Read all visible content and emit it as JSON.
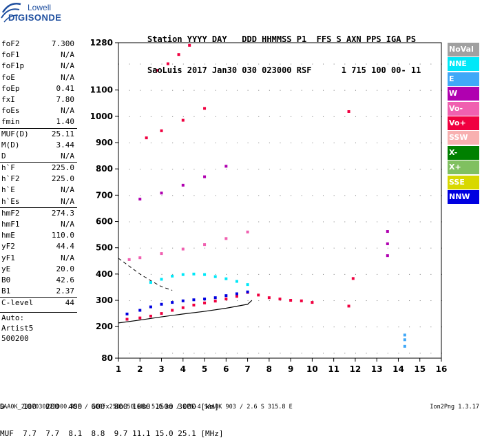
{
  "logo": {
    "line1": "Lowell",
    "line2": "DIGISONDE"
  },
  "header": {
    "line1": "Station YYYY DAY   DDD HHMMSS P1  FFS S AXN PPS IGA PS",
    "line2": "SaoLuis 2017 Jan30 030 023000 RSF      1 715 100 00- 11"
  },
  "params": [
    {
      "name": "foF2",
      "value": "7.300"
    },
    {
      "name": "foF1",
      "value": "N/A"
    },
    {
      "name": "foF1p",
      "value": "N/A"
    },
    {
      "name": "foE",
      "value": "N/A"
    },
    {
      "name": "foEp",
      "value": "0.41"
    },
    {
      "name": "fxI",
      "value": "7.80"
    },
    {
      "name": "foEs",
      "value": "N/A"
    },
    {
      "name": "fmin",
      "value": "1.40"
    },
    {
      "name": "MUF(D)",
      "value": "25.11",
      "sep": true
    },
    {
      "name": "M(D)",
      "value": "3.44"
    },
    {
      "name": "D",
      "value": "N/A"
    },
    {
      "name": "h`F",
      "value": "225.0",
      "sep": true
    },
    {
      "name": "h`F2",
      "value": "225.0"
    },
    {
      "name": "h`E",
      "value": "N/A"
    },
    {
      "name": "h`Es",
      "value": "N/A"
    },
    {
      "name": "hmF2",
      "value": "274.3",
      "sep": true
    },
    {
      "name": "hmF1",
      "value": "N/A"
    },
    {
      "name": "hmE",
      "value": "110.0"
    },
    {
      "name": "yF2",
      "value": "44.4"
    },
    {
      "name": "yF1",
      "value": "N/A"
    },
    {
      "name": "yE",
      "value": "20.0"
    },
    {
      "name": "B0",
      "value": "42.6"
    },
    {
      "name": "B1",
      "value": "2.37"
    },
    {
      "name": "C-level",
      "value": "44",
      "sep": true
    }
  ],
  "autoscale": {
    "line1": "Auto:",
    "line2": "Artist5",
    "line3": "500200"
  },
  "legend": [
    {
      "label": "NoVal",
      "bg": "#a0a0a0",
      "fg": "#ffffff"
    },
    {
      "label": "NNE",
      "bg": "#00e8f8",
      "fg": "#ffffff"
    },
    {
      "label": "E",
      "bg": "#40a8f8",
      "fg": "#ffffff"
    },
    {
      "label": "W",
      "bg": "#b000b0",
      "fg": "#ffffff"
    },
    {
      "label": "Vo-",
      "bg": "#f060b0",
      "fg": "#ffffff"
    },
    {
      "label": "Vo+",
      "bg": "#f00040",
      "fg": "#ffffff"
    },
    {
      "label": "SSW",
      "bg": "#f8b0b0",
      "fg": "#ffffff"
    },
    {
      "label": "X-",
      "bg": "#008000",
      "fg": "#ffffff"
    },
    {
      "label": "X+",
      "bg": "#80c060",
      "fg": "#ffffff"
    },
    {
      "label": "SSE",
      "bg": "#d8d800",
      "fg": "#ffffff"
    },
    {
      "label": "NNW",
      "bg": "#0000e0",
      "fg": "#ffffff"
    }
  ],
  "muf_table": {
    "d_row": "D    100  200  400  600  800 1000 1500 3000 [km]",
    "muf_row": "MUF  7.7  7.7  8.1  8.8  9.7 11.1 15.0 25.1 [MHz]"
  },
  "footer": "SAA0K_2017030023000.RSF / 300fx256h 50 kHz 5.0 km / DPS-4 SAA0K 903 / 2.6 S 315.8 E",
  "version": "Ion2Png 1.3.17",
  "chart_data": {
    "type": "scatter",
    "x_ticks": [
      1,
      2,
      3,
      4,
      5,
      6,
      7,
      8,
      9,
      10,
      11,
      12,
      13,
      14,
      15,
      16
    ],
    "y_ticks": [
      80,
      200,
      300,
      400,
      500,
      600,
      700,
      800,
      900,
      1000,
      1100,
      1280
    ],
    "xlim": [
      1,
      16
    ],
    "ylim": [
      80,
      1280
    ],
    "grid": true,
    "series": [
      {
        "color": "#f00040",
        "x": [
          1.4,
          2.0,
          2.5,
          3.0,
          3.5,
          4.0,
          4.5,
          5.0,
          5.5,
          6.0,
          6.5,
          7.0,
          7.5,
          8.0,
          8.5,
          9.0,
          9.5,
          10.0
        ],
        "y": [
          228,
          233,
          240,
          250,
          262,
          272,
          282,
          290,
          297,
          305,
          315,
          330,
          320,
          310,
          305,
          300,
          298,
          292
        ]
      },
      {
        "color": "#0000e0",
        "x": [
          1.4,
          2.0,
          2.5,
          3.0,
          3.5,
          4.0,
          4.5,
          5.0,
          5.5,
          6.0,
          6.5,
          7.0
        ],
        "y": [
          248,
          262,
          275,
          285,
          292,
          298,
          302,
          305,
          310,
          318,
          325,
          332
        ]
      },
      {
        "color": "#f060b0",
        "x": [
          1.5,
          2.0,
          3.0,
          4.0,
          5.0,
          6.0,
          7.0
        ],
        "y": [
          455,
          462,
          478,
          495,
          512,
          535,
          560
        ]
      },
      {
        "color": "#b000b0",
        "x": [
          2.0,
          3.0,
          4.0,
          5.0,
          6.0
        ],
        "y": [
          685,
          708,
          738,
          770,
          810
        ]
      },
      {
        "color": "#f00040",
        "x": [
          2.3,
          3.0,
          4.0,
          5.0
        ],
        "y": [
          918,
          945,
          985,
          1030
        ]
      },
      {
        "color": "#f00040",
        "x": [
          2.8,
          3.3,
          3.8,
          4.3
        ],
        "y": [
          1175,
          1200,
          1235,
          1270
        ]
      },
      {
        "color": "#00e8f8",
        "x": [
          2.5,
          3.0,
          3.5,
          4.0,
          4.5,
          5.0,
          5.5,
          6.0,
          6.5,
          7.0
        ],
        "y": [
          368,
          380,
          392,
          398,
          400,
          398,
          390,
          382,
          372,
          360
        ]
      },
      {
        "color": "#f00040",
        "x": [
          11.7,
          11.7,
          11.9
        ],
        "y": [
          1018,
          278,
          383
        ]
      },
      {
        "color": "#b000b0",
        "x": [
          13.5,
          13.5,
          13.5
        ],
        "y": [
          562,
          515,
          470
        ]
      },
      {
        "color": "#40a8f8",
        "x": [
          14.3,
          14.3,
          14.3
        ],
        "y": [
          168,
          150,
          125
        ]
      }
    ],
    "profile_curve": {
      "color": "#000000",
      "x": [
        1.0,
        2.0,
        3.0,
        4.0,
        5.0,
        6.0,
        7.0,
        7.2
      ],
      "y": [
        214,
        225,
        237,
        248,
        258,
        270,
        285,
        300
      ]
    },
    "virtual_height_dashed": {
      "color": "#000000",
      "x": [
        1.0,
        1.5,
        2.0,
        2.5,
        3.0,
        3.5
      ],
      "y": [
        460,
        430,
        400,
        375,
        352,
        338
      ]
    }
  }
}
